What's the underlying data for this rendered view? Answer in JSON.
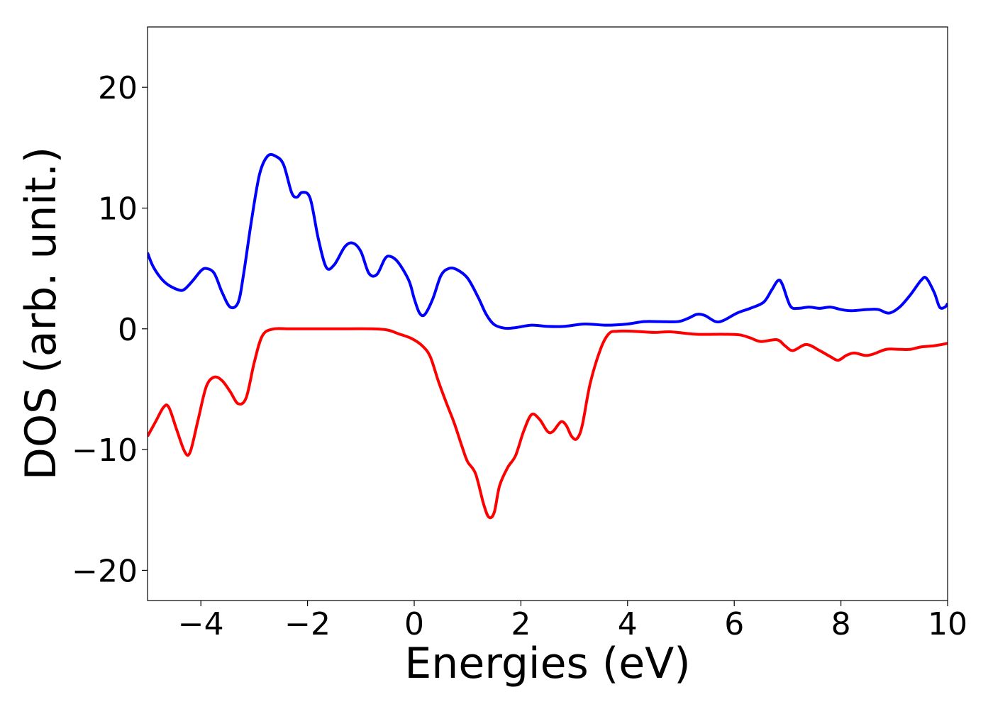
{
  "chart_data": {
    "type": "line",
    "xlabel": "Energies (eV)",
    "ylabel": "DOS (arb. unit.)",
    "xlim": [
      -5,
      10
    ],
    "ylim": [
      -22.5,
      25
    ],
    "x_ticks": [
      -4,
      -2,
      0,
      2,
      4,
      6,
      8,
      10
    ],
    "x_tick_labels": [
      "−4",
      "−2",
      "0",
      "2",
      "4",
      "6",
      "8",
      "10"
    ],
    "y_ticks": [
      -20,
      -10,
      0,
      10,
      20
    ],
    "y_tick_labels": [
      "−20",
      "−10",
      "0",
      "10",
      "20"
    ],
    "grid": false,
    "legend": "none",
    "series": [
      {
        "color": "#0000ff",
        "points": [
          [
            -5.0,
            6.3
          ],
          [
            -4.9,
            5.2
          ],
          [
            -4.75,
            4.2
          ],
          [
            -4.6,
            3.6
          ],
          [
            -4.4,
            3.2
          ],
          [
            -4.3,
            3.3
          ],
          [
            -4.15,
            4.0
          ],
          [
            -4.0,
            4.8
          ],
          [
            -3.9,
            5.0
          ],
          [
            -3.75,
            4.6
          ],
          [
            -3.6,
            3.0
          ],
          [
            -3.45,
            1.8
          ],
          [
            -3.3,
            2.2
          ],
          [
            -3.2,
            4.5
          ],
          [
            -3.05,
            9.0
          ],
          [
            -2.9,
            12.8
          ],
          [
            -2.75,
            14.3
          ],
          [
            -2.6,
            14.3
          ],
          [
            -2.45,
            13.6
          ],
          [
            -2.3,
            11.3
          ],
          [
            -2.2,
            10.9
          ],
          [
            -2.1,
            11.3
          ],
          [
            -1.95,
            10.8
          ],
          [
            -1.8,
            7.5
          ],
          [
            -1.65,
            5.1
          ],
          [
            -1.5,
            5.3
          ],
          [
            -1.3,
            6.8
          ],
          [
            -1.15,
            7.1
          ],
          [
            -1.0,
            6.4
          ],
          [
            -0.85,
            4.6
          ],
          [
            -0.7,
            4.5
          ],
          [
            -0.55,
            5.8
          ],
          [
            -0.45,
            6.0
          ],
          [
            -0.3,
            5.5
          ],
          [
            -0.1,
            4.0
          ],
          [
            0.0,
            2.5
          ],
          [
            0.1,
            1.3
          ],
          [
            0.2,
            1.2
          ],
          [
            0.35,
            2.5
          ],
          [
            0.5,
            4.4
          ],
          [
            0.65,
            5.0
          ],
          [
            0.8,
            4.9
          ],
          [
            1.0,
            4.2
          ],
          [
            1.2,
            2.6
          ],
          [
            1.35,
            1.2
          ],
          [
            1.5,
            0.35
          ],
          [
            1.7,
            0.05
          ],
          [
            1.9,
            0.1
          ],
          [
            2.2,
            0.3
          ],
          [
            2.5,
            0.2
          ],
          [
            2.8,
            0.2
          ],
          [
            3.2,
            0.4
          ],
          [
            3.6,
            0.3
          ],
          [
            4.0,
            0.4
          ],
          [
            4.3,
            0.6
          ],
          [
            4.6,
            0.6
          ],
          [
            4.95,
            0.6
          ],
          [
            5.15,
            0.9
          ],
          [
            5.3,
            1.2
          ],
          [
            5.45,
            1.1
          ],
          [
            5.65,
            0.6
          ],
          [
            5.8,
            0.7
          ],
          [
            6.05,
            1.3
          ],
          [
            6.3,
            1.7
          ],
          [
            6.55,
            2.2
          ],
          [
            6.7,
            3.2
          ],
          [
            6.82,
            4.0
          ],
          [
            6.9,
            3.7
          ],
          [
            7.05,
            1.9
          ],
          [
            7.2,
            1.7
          ],
          [
            7.4,
            1.8
          ],
          [
            7.6,
            1.7
          ],
          [
            7.8,
            1.8
          ],
          [
            8.0,
            1.6
          ],
          [
            8.2,
            1.5
          ],
          [
            8.5,
            1.6
          ],
          [
            8.7,
            1.6
          ],
          [
            8.9,
            1.3
          ],
          [
            9.1,
            1.8
          ],
          [
            9.3,
            2.8
          ],
          [
            9.5,
            4.0
          ],
          [
            9.6,
            4.2
          ],
          [
            9.75,
            3.0
          ],
          [
            9.85,
            1.8
          ],
          [
            9.95,
            1.8
          ],
          [
            10.0,
            2.1
          ]
        ]
      },
      {
        "color": "#ff0000",
        "points": [
          [
            -5.0,
            -8.9
          ],
          [
            -4.85,
            -7.7
          ],
          [
            -4.7,
            -6.5
          ],
          [
            -4.6,
            -6.5
          ],
          [
            -4.45,
            -8.4
          ],
          [
            -4.3,
            -10.2
          ],
          [
            -4.2,
            -10.2
          ],
          [
            -4.05,
            -7.5
          ],
          [
            -3.9,
            -4.8
          ],
          [
            -3.75,
            -4.0
          ],
          [
            -3.6,
            -4.3
          ],
          [
            -3.45,
            -5.2
          ],
          [
            -3.3,
            -6.2
          ],
          [
            -3.15,
            -5.7
          ],
          [
            -3.0,
            -2.8
          ],
          [
            -2.85,
            -0.6
          ],
          [
            -2.65,
            -0.02
          ],
          [
            -2.3,
            0.0
          ],
          [
            -1.5,
            0.0
          ],
          [
            -0.8,
            0.0
          ],
          [
            -0.5,
            -0.1
          ],
          [
            -0.3,
            -0.4
          ],
          [
            -0.05,
            -0.8
          ],
          [
            0.15,
            -1.4
          ],
          [
            0.3,
            -2.3
          ],
          [
            0.45,
            -4.3
          ],
          [
            0.6,
            -6.1
          ],
          [
            0.75,
            -7.8
          ],
          [
            0.9,
            -9.8
          ],
          [
            1.0,
            -11.0
          ],
          [
            1.15,
            -12.0
          ],
          [
            1.3,
            -14.5
          ],
          [
            1.4,
            -15.6
          ],
          [
            1.5,
            -15.2
          ],
          [
            1.6,
            -13.0
          ],
          [
            1.75,
            -11.5
          ],
          [
            1.9,
            -10.5
          ],
          [
            2.05,
            -8.5
          ],
          [
            2.2,
            -7.1
          ],
          [
            2.35,
            -7.5
          ],
          [
            2.5,
            -8.5
          ],
          [
            2.6,
            -8.5
          ],
          [
            2.75,
            -7.7
          ],
          [
            2.85,
            -8.0
          ],
          [
            2.95,
            -8.9
          ],
          [
            3.05,
            -9.1
          ],
          [
            3.15,
            -8.0
          ],
          [
            3.3,
            -4.5
          ],
          [
            3.5,
            -1.6
          ],
          [
            3.65,
            -0.4
          ],
          [
            3.8,
            -0.2
          ],
          [
            4.1,
            -0.2
          ],
          [
            4.5,
            -0.3
          ],
          [
            4.8,
            -0.25
          ],
          [
            5.3,
            -0.45
          ],
          [
            5.8,
            -0.45
          ],
          [
            6.1,
            -0.5
          ],
          [
            6.3,
            -0.75
          ],
          [
            6.5,
            -1.05
          ],
          [
            6.8,
            -0.9
          ],
          [
            6.95,
            -1.4
          ],
          [
            7.1,
            -1.8
          ],
          [
            7.35,
            -1.3
          ],
          [
            7.6,
            -1.8
          ],
          [
            7.8,
            -2.3
          ],
          [
            7.95,
            -2.6
          ],
          [
            8.1,
            -2.2
          ],
          [
            8.25,
            -2.0
          ],
          [
            8.45,
            -2.2
          ],
          [
            8.6,
            -2.1
          ],
          [
            8.85,
            -1.7
          ],
          [
            9.1,
            -1.7
          ],
          [
            9.3,
            -1.7
          ],
          [
            9.5,
            -1.5
          ],
          [
            9.75,
            -1.4
          ],
          [
            10.0,
            -1.2
          ]
        ]
      }
    ]
  }
}
